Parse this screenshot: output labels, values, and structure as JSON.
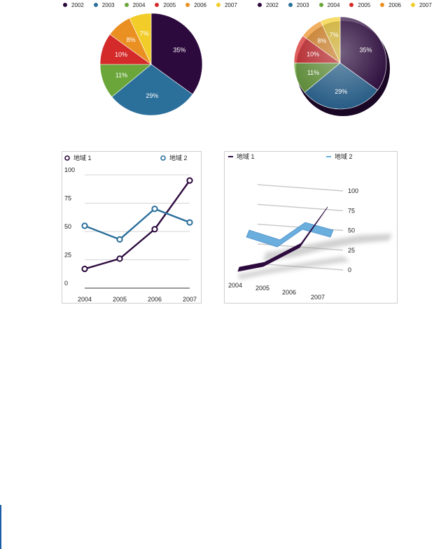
{
  "colors": {
    "y2002": "#2d0a3e",
    "y2003": "#2b6f9b",
    "y2004": "#6aa63a",
    "y2005": "#d42a2a",
    "y2006": "#ea9022",
    "y2007": "#f2cd2a",
    "region1": "#2d0a3e",
    "region2": "#2b6f9b",
    "region2_3d": "#6aaede",
    "grid": "#c8c8c8"
  },
  "pie_legend": [
    "2002",
    "2003",
    "2004",
    "2005",
    "2006",
    "2007"
  ],
  "line_legend": [
    "地域 1",
    "地域 2"
  ],
  "chart_data": [
    {
      "type": "pie",
      "labels": [
        "2002",
        "2003",
        "2004",
        "2005",
        "2006",
        "2007"
      ],
      "values": [
        35,
        29,
        11,
        10,
        8,
        7
      ],
      "value_labels": [
        "35%",
        "29%",
        "11%",
        "10%",
        "8%",
        "7%"
      ],
      "legend": "top"
    },
    {
      "type": "pie",
      "style": "3d",
      "labels": [
        "2002",
        "2003",
        "2004",
        "2005",
        "2006",
        "2007"
      ],
      "values": [
        35,
        29,
        11,
        10,
        8,
        7
      ],
      "value_labels": [
        "35%",
        "29%",
        "11%",
        "10%",
        "8%",
        "7%"
      ],
      "legend": "top"
    },
    {
      "type": "line",
      "x": [
        "2004",
        "2005",
        "2006",
        "2007"
      ],
      "series": [
        {
          "name": "地域 1",
          "values": [
            17,
            26,
            52,
            95
          ]
        },
        {
          "name": "地域 2",
          "values": [
            55,
            43,
            70,
            58
          ]
        }
      ],
      "ylim": [
        0,
        100
      ],
      "yticks": [
        "0",
        "25",
        "50",
        "75",
        "100"
      ],
      "grid": true,
      "legend": "top"
    },
    {
      "type": "line",
      "style": "3d",
      "x": [
        "2004",
        "2005",
        "2006",
        "2007"
      ],
      "series": [
        {
          "name": "地域 1",
          "values": [
            17,
            26,
            52,
            95
          ]
        },
        {
          "name": "地域 2",
          "values": [
            55,
            43,
            70,
            58
          ]
        }
      ],
      "ylim": [
        0,
        100
      ],
      "yticks": [
        "0",
        "25",
        "50",
        "75",
        "100"
      ],
      "grid": true,
      "legend": "top"
    }
  ]
}
